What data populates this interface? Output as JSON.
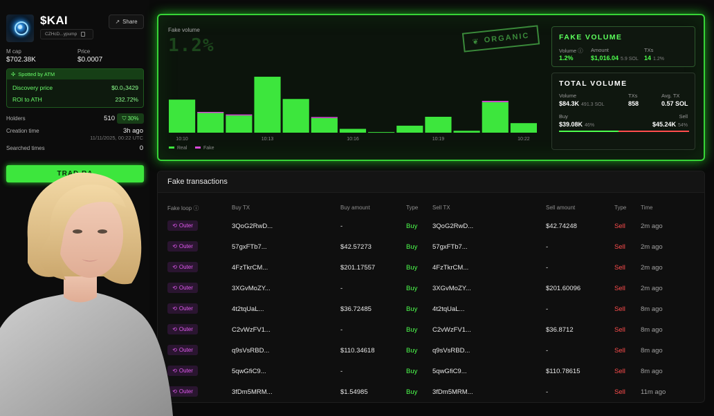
{
  "token": {
    "name": "$KAI",
    "address": "CZHcD...ypump",
    "share_label": "Share",
    "mcap_label": "M cap",
    "mcap_value": "$702.38K",
    "price_label": "Price",
    "price_value": "$0.0007"
  },
  "atm": {
    "spotted_label": "Spotted by ATM",
    "discovery_label": "Discovery price",
    "discovery_value": "$0.0₃3429",
    "roi_label": "ROI to ATH",
    "roi_value": "232.72%"
  },
  "stats": {
    "holders_label": "Holders",
    "holders_value": "510",
    "holders_pct": "30%",
    "creation_label": "Creation time",
    "creation_value": "3h ago",
    "creation_date": "11/11/2025, 00:22 UTC",
    "searched_label": "Searched times",
    "searched_value": "0"
  },
  "trade_button": "TRAD      RA",
  "fake_volume_card": {
    "label": "Fake volume",
    "pct": "1.2%",
    "stamp": "ORGANIC",
    "legend_real": "Real",
    "legend_fake": "Fake"
  },
  "fake_volume_panel": {
    "title": "FAKE VOLUME",
    "volume_label": "Volume",
    "volume_value": "1.2%",
    "amount_label": "Amount",
    "amount_value": "$1,016.04",
    "amount_sub": "5.9 SOL",
    "txs_label": "TXs",
    "txs_value": "14",
    "txs_sub": "1.2%"
  },
  "total_volume_panel": {
    "title": "TOTAL VOLUME",
    "volume_label": "Volume",
    "volume_value": "$84.3K",
    "volume_sub": "491.3 SOL",
    "txs_label": "TXs",
    "txs_value": "858",
    "avg_label": "Avg. TX",
    "avg_value": "0.57 SOL",
    "buy_label": "Buy",
    "buy_value": "$39.08K",
    "buy_pct": "46%",
    "sell_label": "Sell",
    "sell_value": "$45.24K",
    "sell_pct": "54%",
    "buy_fraction": 0.46
  },
  "colors": {
    "accent": "#3de63d",
    "fake": "#d94ad9",
    "buy": "#4dff4d",
    "sell": "#ff4d4d"
  },
  "chart_data": {
    "type": "bar",
    "categories": [
      "10:10",
      "10:11",
      "10:12",
      "10:13",
      "10:14",
      "10:15",
      "10:16",
      "10:17",
      "10:18",
      "10:19",
      "10:20",
      "10:21",
      "10:22"
    ],
    "tick_labels": [
      "10:10",
      "10:13",
      "10:16",
      "10:19",
      "10:22"
    ],
    "tick_indices": [
      0,
      3,
      6,
      9,
      12
    ],
    "series": [
      {
        "name": "Real",
        "values": [
          52,
          31,
          27,
          88,
          53,
          23,
          6,
          1,
          11,
          25,
          3,
          48,
          15
        ]
      },
      {
        "name": "Fake",
        "values": [
          0,
          1,
          1,
          0,
          0,
          1.5,
          0,
          0,
          0,
          0,
          0,
          2,
          0
        ]
      }
    ],
    "ylim": [
      0,
      100
    ],
    "legend": "bottom-left"
  },
  "transactions": {
    "title": "Fake transactions",
    "columns": [
      "Fake loop",
      "Buy TX",
      "Buy amount",
      "Type",
      "Sell TX",
      "Sell amount",
      "Type",
      "Time"
    ],
    "rows": [
      {
        "loop": "Outer",
        "buy_tx": "3QoG2RwD...",
        "buy_amount": "-",
        "buy_type": "Buy",
        "sell_tx": "3QoG2RwD...",
        "sell_amount": "$42.74248",
        "sell_type": "Sell",
        "time": "2m ago"
      },
      {
        "loop": "Outer",
        "buy_tx": "57gxFTb7...",
        "buy_amount": "$42.57273",
        "buy_type": "Buy",
        "sell_tx": "57gxFTb7...",
        "sell_amount": "-",
        "sell_type": "Sell",
        "time": "2m ago"
      },
      {
        "loop": "Outer",
        "buy_tx": "4FzTkrCM...",
        "buy_amount": "$201.17557",
        "buy_type": "Buy",
        "sell_tx": "4FzTkrCM...",
        "sell_amount": "-",
        "sell_type": "Sell",
        "time": "2m ago"
      },
      {
        "loop": "Outer",
        "buy_tx": "3XGvMoZY...",
        "buy_amount": "-",
        "buy_type": "Buy",
        "sell_tx": "3XGvMoZY...",
        "sell_amount": "$201.60096",
        "sell_type": "Sell",
        "time": "2m ago"
      },
      {
        "loop": "Outer",
        "buy_tx": "4t2tqUaL...",
        "buy_amount": "$36.72485",
        "buy_type": "Buy",
        "sell_tx": "4t2tqUaL...",
        "sell_amount": "-",
        "sell_type": "Sell",
        "time": "8m ago"
      },
      {
        "loop": "Outer",
        "buy_tx": "C2vWzFV1...",
        "buy_amount": "-",
        "buy_type": "Buy",
        "sell_tx": "C2vWzFV1...",
        "sell_amount": "$36.8712",
        "sell_type": "Sell",
        "time": "8m ago"
      },
      {
        "loop": "Outer",
        "buy_tx": "q9sVsRBD...",
        "buy_amount": "$110.34618",
        "buy_type": "Buy",
        "sell_tx": "q9sVsRBD...",
        "sell_amount": "-",
        "sell_type": "Sell",
        "time": "8m ago"
      },
      {
        "loop": "Outer",
        "buy_tx": "5qwGfiC9...",
        "buy_amount": "-",
        "buy_type": "Buy",
        "sell_tx": "5qwGfiC9...",
        "sell_amount": "$110.78615",
        "sell_type": "Sell",
        "time": "8m ago"
      },
      {
        "loop": "Outer",
        "buy_tx": "3fDm5MRM...",
        "buy_amount": "$1.54985",
        "buy_type": "Buy",
        "sell_tx": "3fDm5MRM...",
        "sell_amount": "-",
        "sell_type": "Sell",
        "time": "11m ago"
      }
    ]
  }
}
